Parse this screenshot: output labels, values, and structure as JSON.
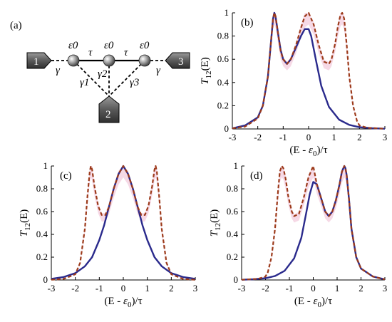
{
  "panel_a": {
    "label": "(a)",
    "sites": [
      "ε0",
      "ε0",
      "ε0"
    ],
    "hoppings": [
      "τ",
      "τ"
    ],
    "couplings": [
      "γ",
      "γ",
      "γ1",
      "γ2",
      "γ3"
    ],
    "leads": [
      "1",
      "2",
      "3"
    ]
  },
  "colors": {
    "solid_series": "#2a2a8c",
    "dashed_series": "#9c3a1a",
    "shade": "#f6d9e6",
    "lead": "#555555"
  },
  "axis_text": {
    "xlabel": "(E - ε0)/τ",
    "ylabel": "T12(E)"
  },
  "chart_data": [
    {
      "panel": "(b)",
      "type": "line",
      "xlabel": "(E - ε0)/τ",
      "ylabel": "T12(E)",
      "xlim": [
        -3,
        3
      ],
      "ylim": [
        0,
        1
      ],
      "xticks": [
        -3,
        -2,
        -1,
        0,
        1,
        2,
        3
      ],
      "yticks": [
        0,
        0.2,
        0.4,
        0.6,
        0.8,
        1
      ],
      "series": [
        {
          "style": "solid",
          "x": [
            -3,
            -2.5,
            -2,
            -1.8,
            -1.6,
            -1.5,
            -1.4,
            -1.35,
            -1.3,
            -1.2,
            -1.1,
            -1,
            -0.85,
            -0.7,
            -0.5,
            -0.3,
            -0.15,
            0,
            0.1,
            0.3,
            0.5,
            0.8,
            1.2,
            1.6,
            2,
            2.5,
            3
          ],
          "y": [
            0.005,
            0.03,
            0.1,
            0.2,
            0.45,
            0.7,
            0.95,
            1.0,
            0.97,
            0.82,
            0.68,
            0.6,
            0.56,
            0.6,
            0.7,
            0.8,
            0.86,
            0.86,
            0.8,
            0.58,
            0.37,
            0.19,
            0.08,
            0.035,
            0.015,
            0.006,
            0.002
          ]
        },
        {
          "style": "dashed",
          "x": [
            -3,
            -2.5,
            -2,
            -1.8,
            -1.6,
            -1.5,
            -1.4,
            -1.35,
            -1.3,
            -1.2,
            -1.1,
            -1,
            -0.85,
            -0.7,
            -0.5,
            -0.3,
            -0.15,
            0,
            0.2,
            0.4,
            0.6,
            0.8,
            0.9,
            1.05,
            1.15,
            1.25,
            1.32,
            1.4,
            1.5,
            1.6,
            1.75,
            1.9,
            2,
            2.3,
            3
          ],
          "y": [
            0.005,
            0.02,
            0.09,
            0.2,
            0.45,
            0.7,
            0.95,
            1.0,
            0.97,
            0.82,
            0.67,
            0.6,
            0.56,
            0.6,
            0.72,
            0.87,
            0.97,
            1.0,
            0.9,
            0.72,
            0.58,
            0.56,
            0.6,
            0.74,
            0.88,
            0.98,
            1.0,
            0.95,
            0.72,
            0.45,
            0.2,
            0.07,
            0.03,
            0.01,
            0.002
          ]
        }
      ]
    },
    {
      "panel": "(c)",
      "type": "line",
      "xlabel": "(E - ε0)/τ",
      "ylabel": "T12(E)",
      "xlim": [
        -3,
        3
      ],
      "ylim": [
        0,
        1
      ],
      "xticks": [
        -3,
        -2,
        -1,
        0,
        1,
        2,
        3
      ],
      "yticks": [
        0,
        0.2,
        0.4,
        0.6,
        0.8,
        1
      ],
      "series": [
        {
          "style": "solid",
          "x": [
            -3,
            -2.5,
            -2,
            -1.6,
            -1.3,
            -1,
            -0.8,
            -0.6,
            -0.4,
            -0.2,
            0,
            0.2,
            0.4,
            0.6,
            0.8,
            1,
            1.3,
            1.6,
            2,
            2.5,
            3
          ],
          "y": [
            0.01,
            0.025,
            0.06,
            0.12,
            0.2,
            0.35,
            0.48,
            0.64,
            0.8,
            0.93,
            1.0,
            0.93,
            0.8,
            0.64,
            0.48,
            0.35,
            0.2,
            0.12,
            0.06,
            0.025,
            0.01
          ]
        },
        {
          "style": "dashed",
          "x": [
            -3,
            -2.5,
            -2,
            -1.8,
            -1.6,
            -1.5,
            -1.4,
            -1.35,
            -1.3,
            -1.2,
            -1.05,
            -0.9,
            -0.75,
            -0.6,
            -0.4,
            -0.2,
            0,
            0.2,
            0.4,
            0.6,
            0.75,
            0.9,
            1.05,
            1.2,
            1.3,
            1.35,
            1.4,
            1.5,
            1.6,
            1.8,
            2,
            2.5,
            3
          ],
          "y": [
            0.002,
            0.008,
            0.05,
            0.15,
            0.45,
            0.72,
            0.95,
            1.0,
            0.97,
            0.82,
            0.65,
            0.57,
            0.57,
            0.64,
            0.8,
            0.93,
            1.0,
            0.93,
            0.8,
            0.64,
            0.57,
            0.57,
            0.65,
            0.82,
            0.97,
            1.0,
            0.95,
            0.72,
            0.45,
            0.15,
            0.05,
            0.008,
            0.002
          ]
        }
      ]
    },
    {
      "panel": "(d)",
      "type": "line",
      "xlabel": "(E - ε0)/τ",
      "ylabel": "T12(E)",
      "xlim": [
        -3,
        3
      ],
      "ylim": [
        0,
        1
      ],
      "xticks": [
        -3,
        -2,
        -1,
        0,
        1,
        2,
        3
      ],
      "yticks": [
        0,
        0.2,
        0.4,
        0.6,
        0.8,
        1
      ],
      "series": [
        {
          "style": "solid",
          "x": [
            -3,
            -2.5,
            -2,
            -1.6,
            -1.2,
            -0.8,
            -0.5,
            -0.3,
            -0.15,
            0,
            0.15,
            0.3,
            0.5,
            0.65,
            0.8,
            0.95,
            1.1,
            1.2,
            1.3,
            1.35,
            1.4,
            1.5,
            1.6,
            1.8,
            2,
            2.5,
            3
          ],
          "y": [
            0.002,
            0.006,
            0.015,
            0.035,
            0.08,
            0.19,
            0.37,
            0.58,
            0.75,
            0.86,
            0.84,
            0.74,
            0.6,
            0.56,
            0.6,
            0.7,
            0.84,
            0.95,
            1.0,
            0.98,
            0.92,
            0.7,
            0.45,
            0.2,
            0.1,
            0.03,
            0.005
          ]
        },
        {
          "style": "dashed",
          "x": [
            -3,
            -2.3,
            -2,
            -1.9,
            -1.75,
            -1.6,
            -1.5,
            -1.4,
            -1.32,
            -1.25,
            -1.15,
            -1.05,
            -0.9,
            -0.8,
            -0.6,
            -0.4,
            -0.2,
            0,
            0.15,
            0.3,
            0.5,
            0.65,
            0.8,
            0.95,
            1.1,
            1.2,
            1.3,
            1.35,
            1.4,
            1.5,
            1.6,
            1.8,
            2,
            2.5,
            3
          ],
          "y": [
            0.002,
            0.01,
            0.03,
            0.07,
            0.2,
            0.45,
            0.72,
            0.95,
            1.0,
            0.98,
            0.88,
            0.74,
            0.6,
            0.56,
            0.58,
            0.72,
            0.9,
            1.0,
            0.84,
            0.74,
            0.6,
            0.56,
            0.6,
            0.7,
            0.84,
            0.95,
            1.0,
            0.98,
            0.92,
            0.7,
            0.45,
            0.2,
            0.1,
            0.03,
            0.005
          ]
        }
      ]
    }
  ]
}
